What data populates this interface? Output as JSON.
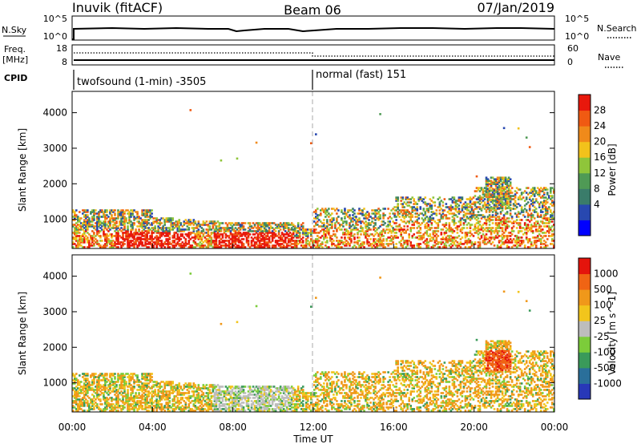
{
  "header": {
    "station": "Inuvik (fitACF)",
    "beam": "Beam 06",
    "date": "07/Jan/2019"
  },
  "top_panels": {
    "nsky_label": "N.Sky",
    "nsky_ticks": [
      "10^5",
      "10^0"
    ],
    "nsearch_label": "N.Search",
    "nsearch_ticks": [
      "10^5",
      "10^0"
    ],
    "freq_label_1": "Freq.",
    "freq_label_2": "[MHz]",
    "freq_ticks": [
      "18",
      "8"
    ],
    "nave_label": "Nave",
    "nave_ticks": [
      "60",
      "0"
    ],
    "cpid_label": "CPID",
    "cpid_segments": [
      {
        "text": "twofsound (1-min) -3505",
        "start": "00:00"
      },
      {
        "text": "normal (fast) 151",
        "start": "12:00"
      }
    ]
  },
  "chart_data": [
    {
      "type": "heatmap",
      "name": "power",
      "x_label": "",
      "y_label": "Slant Range [km]",
      "x_range_hours": [
        0,
        24
      ],
      "y_range_km": [
        180,
        4600
      ],
      "y_ticks": [
        "4000",
        "3000",
        "2000",
        "1000"
      ],
      "y_tick_values": [
        4000,
        3000,
        2000,
        1000
      ],
      "colorbar_label": "Power [dB]",
      "colorbar_ticks": [
        "28",
        "24",
        "20",
        "16",
        "12",
        "8",
        "4"
      ],
      "colorbar_colors": [
        "#0000ff",
        "#2848b0",
        "#3a7c6a",
        "#4f9a55",
        "#8fc53a",
        "#f2c21b",
        "#f08a1a",
        "#f05a12",
        "#e8180c"
      ],
      "mode_change_hour": 12
    },
    {
      "type": "heatmap",
      "name": "velocity",
      "x_label": "Time UT",
      "y_label": "Slant Range [km]",
      "x_range_hours": [
        0,
        24
      ],
      "y_range_km": [
        180,
        4600
      ],
      "x_ticks": [
        "00:00",
        "04:00",
        "08:00",
        "12:00",
        "16:00",
        "20:00",
        "00:00"
      ],
      "y_ticks": [
        "4000",
        "3000",
        "2000",
        "1000"
      ],
      "y_tick_values": [
        4000,
        3000,
        2000,
        1000
      ],
      "colorbar_label": "Velocity [m s^-1]",
      "colorbar_ticks": [
        "1000",
        "500",
        "100",
        "25",
        "-25",
        "-100",
        "-500",
        "-1000"
      ],
      "colorbar_colors": [
        "#2838b8",
        "#2a6f9a",
        "#3a9a5a",
        "#7ccc3a",
        "#bdbdbd",
        "#f2c51c",
        "#f0981a",
        "#f06414",
        "#e4140c"
      ],
      "mode_change_hour": 12
    }
  ]
}
